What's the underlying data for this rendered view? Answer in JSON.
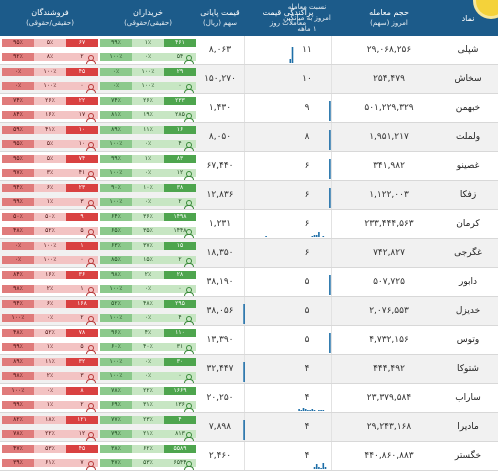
{
  "header": {
    "symbol": "نماد",
    "volume": "حجم معامله",
    "volume_sub": "امروز (سهم)",
    "ratio": "نسبت معامله",
    "ratio_sub": "امروز به میانگین",
    "ratio_sub2": "۱ ماهه",
    "spark": "پراکندگی قیمت",
    "spark_sub": "معاملات روز",
    "price": "قیمت پایانی",
    "price_sub": "سهم (ریال)",
    "buyers": "خریداران",
    "buyers_sub": "(حقیقی/حقوقی)",
    "sellers": "فروشندگان",
    "sellers_sub": "(حقیقی/حقوقی)"
  },
  "rows": [
    {
      "name": "شپلی",
      "volume": "۲۹,۰۶۸,۲۵۶",
      "ratio": "۱۱",
      "price": "۸,۰۶۳",
      "buy_top": [
        "۹۹٪",
        "۱٪",
        "۴۶۱"
      ],
      "buy_bot": [
        "۱۰۰٪",
        "۰٪",
        "۵۴"
      ],
      "sell_top": [
        "۹۵٪",
        "۵٪",
        "۶۷"
      ],
      "sell_bot": [
        "۹۲٪",
        "۸٪",
        "۲"
      ],
      "spark": [
        0,
        0,
        0,
        0,
        0,
        0,
        0,
        0,
        0,
        0,
        0,
        0,
        0,
        0,
        0,
        0,
        0,
        0,
        0,
        0,
        0,
        4,
        16,
        0,
        0,
        0,
        0,
        0,
        0,
        0,
        0,
        0,
        0,
        0,
        0,
        0,
        0,
        0,
        0,
        0
      ]
    },
    {
      "name": "سخاش",
      "volume": "۲۵۴,۴۷۹",
      "ratio": "۱۰",
      "price": "۱۵۰,۲۷۰",
      "buy_top": [
        "۰٪",
        "۱۰۰٪",
        "۲۹"
      ],
      "buy_bot": [
        "۰٪",
        "۱۰۰٪",
        "۰"
      ],
      "sell_top": [
        "۰٪",
        "۱۰۰٪",
        "۴۵"
      ],
      "sell_bot": [
        "۰٪",
        "۱۰۰٪",
        "۰"
      ],
      "spark": [
        0,
        0,
        0,
        0,
        0,
        0,
        0,
        0,
        0,
        0,
        0,
        0,
        0,
        0,
        0,
        0,
        0,
        0,
        0,
        0,
        0,
        0,
        0,
        0,
        0,
        0,
        0,
        0,
        0,
        0,
        0,
        0,
        0,
        0,
        0,
        0,
        0,
        0,
        0,
        0
      ]
    },
    {
      "name": "خبهمن",
      "volume": "۵۰۱,۲۲۹,۳۲۹",
      "ratio": "۹",
      "price": "۱,۴۳۰",
      "buy_top": [
        "۷۴٪",
        "۲۶٪",
        "۲۳۳"
      ],
      "buy_bot": [
        "۸۱٪",
        "۱۹٪",
        "۲۸۵"
      ],
      "sell_top": [
        "۷۴٪",
        "۲۶٪",
        "۲۲"
      ],
      "sell_bot": [
        "۸۴٪",
        "۱۶٪",
        "۱۷"
      ],
      "spark": [
        0,
        0,
        0,
        0,
        0,
        0,
        0,
        0,
        0,
        0,
        0,
        0,
        0,
        0,
        0,
        0,
        0,
        0,
        0,
        0,
        0,
        0,
        0,
        0,
        0,
        0,
        0,
        0,
        0,
        0,
        0,
        0,
        0,
        0,
        0,
        0,
        0,
        0,
        0,
        20
      ]
    },
    {
      "name": "ولملت",
      "volume": "۱,۹۵۱,۲۱۷",
      "ratio": "۸",
      "price": "۸,۰۵۰",
      "buy_top": [
        "۸۹٪",
        "۱۱٪",
        "۱۶"
      ],
      "buy_bot": [
        "۱۰۰٪",
        "۰٪",
        "۴"
      ],
      "sell_top": [
        "۵۹٪",
        "۴۱٪",
        "۱۰"
      ],
      "sell_bot": [
        "۹۵٪",
        "۵٪",
        "۱۰"
      ],
      "spark": [
        0,
        0,
        0,
        0,
        0,
        0,
        0,
        0,
        0,
        0,
        0,
        0,
        0,
        0,
        0,
        0,
        0,
        0,
        0,
        0,
        0,
        0,
        0,
        0,
        0,
        0,
        0,
        0,
        0,
        0,
        0,
        0,
        0,
        0,
        0,
        0,
        0,
        0,
        0,
        20
      ]
    },
    {
      "name": "غصینو",
      "volume": "۳۴۱,۹۸۲",
      "ratio": "۶",
      "price": "۶۷,۴۴۰",
      "buy_top": [
        "۹۹٪",
        "۱٪",
        "۸۳"
      ],
      "buy_bot": [
        "۱۰۰٪",
        "۰٪",
        "۱۲"
      ],
      "sell_top": [
        "۹۵٪",
        "۵٪",
        "۷۴"
      ],
      "sell_bot": [
        "۹۷٪",
        "۳٪",
        "۴۱"
      ],
      "spark": [
        0,
        0,
        0,
        0,
        0,
        0,
        0,
        0,
        0,
        0,
        0,
        0,
        0,
        0,
        0,
        0,
        0,
        0,
        0,
        0,
        0,
        0,
        0,
        0,
        0,
        0,
        0,
        0,
        0,
        0,
        0,
        0,
        0,
        0,
        0,
        0,
        0,
        0,
        0,
        20
      ]
    },
    {
      "name": "زفکا",
      "volume": "۱,۱۲۲,۰۰۳",
      "ratio": "۶",
      "price": "۱۲,۸۳۶",
      "buy_top": [
        "۹۰٪",
        "۱۰٪",
        "۳۸"
      ],
      "buy_bot": [
        "۱۰۰٪",
        "۰٪",
        "۲"
      ],
      "sell_top": [
        "۹۴٪",
        "۶٪",
        "۲۳"
      ],
      "sell_bot": [
        "۹۹٪",
        "۱٪",
        "۳"
      ],
      "spark": [
        0,
        0,
        0,
        0,
        0,
        0,
        0,
        0,
        0,
        0,
        0,
        0,
        0,
        0,
        0,
        0,
        0,
        0,
        0,
        0,
        0,
        0,
        0,
        0,
        0,
        0,
        0,
        0,
        0,
        0,
        0,
        0,
        0,
        0,
        0,
        0,
        0,
        0,
        0,
        20
      ]
    },
    {
      "name": "کرمان",
      "volume": "۲۳۳,۴۴۴,۵۶۳",
      "ratio": "۶",
      "price": "۱,۲۳۱",
      "buy_top": [
        "۶۴٪",
        "۳۶٪",
        "۱۴۹۸"
      ],
      "buy_bot": [
        "۶۵٪",
        "۳۵٪",
        "۱۴۴۸"
      ],
      "sell_top": [
        "۵۰٪",
        "۵۰٪",
        "۹"
      ],
      "sell_bot": [
        "۴۸٪",
        "۵۲٪",
        "۵"
      ],
      "spark": [
        0,
        0,
        0,
        0,
        0,
        0,
        0,
        0,
        0,
        0,
        1,
        0,
        0,
        0,
        0,
        0,
        0,
        0,
        0,
        0,
        0,
        0,
        0,
        0,
        0,
        0,
        0,
        0,
        0,
        0,
        0,
        1,
        2,
        2,
        5,
        0,
        1,
        0,
        0,
        0
      ]
    },
    {
      "name": "غگرجی",
      "volume": "۷۴۲,۸۲۷",
      "ratio": "۶",
      "price": "۱۸,۳۵۰",
      "buy_top": [
        "۶۳٪",
        "۳۷٪",
        "۱۵"
      ],
      "buy_bot": [
        "۸۵٪",
        "۱۵٪",
        "۲"
      ],
      "sell_top": [
        "۰٪",
        "۱۰۰٪",
        "۱"
      ],
      "sell_bot": [
        "۰٪",
        "۱۰۰٪",
        "۰"
      ],
      "spark": [
        0,
        0,
        0,
        0,
        0,
        0,
        0,
        0,
        0,
        0,
        0,
        0,
        0,
        0,
        0,
        0,
        0,
        0,
        0,
        0,
        0,
        0,
        0,
        0,
        0,
        0,
        0,
        0,
        0,
        0,
        0,
        0,
        0,
        0,
        0,
        0,
        0,
        0,
        0,
        0
      ]
    },
    {
      "name": "دابور",
      "volume": "۵۰۷,۷۲۵",
      "ratio": "۵",
      "price": "۳۸,۱۹۰",
      "buy_top": [
        "۹۸٪",
        "۲٪",
        "۲۸"
      ],
      "buy_bot": [
        "۱۰۰٪",
        "۰٪",
        "۰"
      ],
      "sell_top": [
        "۸۴٪",
        "۱۶٪",
        "۳۶"
      ],
      "sell_bot": [
        "۹۸٪",
        "۲٪",
        "۱"
      ],
      "spark": [
        0,
        0,
        0,
        0,
        0,
        0,
        0,
        0,
        0,
        0,
        0,
        0,
        0,
        0,
        0,
        0,
        0,
        0,
        0,
        0,
        0,
        0,
        0,
        0,
        0,
        0,
        0,
        0,
        0,
        0,
        0,
        0,
        0,
        0,
        0,
        0,
        0,
        0,
        0,
        20
      ]
    },
    {
      "name": "خدیزل",
      "volume": "۲,۰۷۶,۵۵۳",
      "ratio": "۵",
      "price": "۳۸,۰۵۶",
      "buy_top": [
        "۵۲٪",
        "۴۸٪",
        "۲۹۵"
      ],
      "buy_bot": [
        "۱۰۰٪",
        "۰٪",
        "۴"
      ],
      "sell_top": [
        "۹۴٪",
        "۶٪",
        "۱۶۸"
      ],
      "sell_bot": [
        "۱۰۰٪",
        "۰٪",
        "۲"
      ],
      "spark": [
        20,
        0,
        0,
        0,
        0,
        0,
        0,
        0,
        0,
        0,
        0,
        0,
        0,
        0,
        0,
        0,
        0,
        0,
        0,
        0,
        0,
        0,
        0,
        0,
        0,
        0,
        0,
        0,
        0,
        0,
        0,
        0,
        0,
        0,
        0,
        0,
        0,
        0,
        0,
        0
      ]
    },
    {
      "name": "وتوس",
      "volume": "۴,۷۳۲,۱۵۶",
      "ratio": "۵",
      "price": "۱۳,۳۹۰",
      "buy_top": [
        "۹۶٪",
        "۴٪",
        "۱۱۰"
      ],
      "buy_bot": [
        "۶۰٪",
        "۴۰٪",
        "۳۱"
      ],
      "sell_top": [
        "۴۸٪",
        "۵۲٪",
        "۷۸"
      ],
      "sell_bot": [
        "۹۹٪",
        "۱٪",
        "۵"
      ],
      "spark": [
        0,
        0,
        0,
        0,
        0,
        0,
        0,
        0,
        0,
        0,
        0,
        0,
        0,
        0,
        0,
        0,
        0,
        0,
        0,
        0,
        0,
        0,
        0,
        0,
        0,
        0,
        0,
        0,
        0,
        0,
        0,
        0,
        0,
        0,
        0,
        0,
        0,
        0,
        0,
        20
      ]
    },
    {
      "name": "شتوکا",
      "volume": "۴۴۴,۴۹۲",
      "ratio": "۴",
      "price": "۳۲,۴۴۷",
      "buy_top": [
        "۱۰۰٪",
        "۰٪",
        "۳۰"
      ],
      "buy_bot": [
        "۱۰۰٪",
        "۰٪",
        "۰"
      ],
      "sell_top": [
        "۸۹٪",
        "۱۱٪",
        "۳۲"
      ],
      "sell_bot": [
        "۹۸٪",
        "۲٪",
        "۳"
      ],
      "spark": [
        20,
        0,
        0,
        0,
        0,
        0,
        0,
        0,
        0,
        0,
        0,
        0,
        0,
        0,
        0,
        0,
        0,
        0,
        0,
        0,
        0,
        0,
        0,
        0,
        0,
        0,
        0,
        0,
        0,
        0,
        0,
        0,
        0,
        0,
        0,
        0,
        0,
        0,
        0,
        0
      ]
    },
    {
      "name": "ساراب",
      "volume": "۲۳,۳۷۹,۵۸۴",
      "ratio": "۴",
      "price": "۲۰,۲۵۰",
      "buy_top": [
        "۷۸٪",
        "۲۲٪",
        "۱۶۶۹"
      ],
      "buy_bot": [
        "۶۹٪",
        "۳۱٪",
        "۱۳۶"
      ],
      "sell_top": [
        "۱۰۰٪",
        "۰٪",
        "۸"
      ],
      "sell_bot": [
        "۹۹٪",
        "۱٪",
        "۲"
      ],
      "spark": [
        0,
        0,
        0,
        0,
        0,
        0,
        0,
        0,
        0,
        0,
        0,
        0,
        0,
        0,
        0,
        0,
        0,
        0,
        0,
        0,
        0,
        0,
        0,
        0,
        0,
        2,
        1,
        3,
        2,
        1,
        1,
        2,
        1,
        0,
        1,
        1,
        1,
        0,
        0,
        0
      ]
    },
    {
      "name": "مادیرا",
      "volume": "۲۹,۲۴۳,۱۶۸",
      "ratio": "۴",
      "price": "۷,۸۹۸",
      "buy_top": [
        "۷۷٪",
        "۲۳٪",
        "۴"
      ],
      "buy_bot": [
        "۷۹٪",
        "۲۱٪",
        "۸۱۳"
      ],
      "sell_top": [
        "۸۲٪",
        "۱۸٪",
        "۱۲۱"
      ],
      "sell_bot": [
        "۷۸٪",
        "۲۲٪",
        "۱۲"
      ],
      "spark": [
        20,
        0,
        0,
        0,
        0,
        0,
        0,
        0,
        0,
        0,
        0,
        0,
        0,
        0,
        0,
        0,
        0,
        0,
        0,
        0,
        0,
        0,
        0,
        0,
        0,
        0,
        0,
        0,
        0,
        0,
        0,
        0,
        0,
        0,
        0,
        0,
        0,
        0,
        0,
        0
      ]
    },
    {
      "name": "خگستر",
      "volume": "۴۴۰,۸۶۰,۸۸۳",
      "ratio": "۴",
      "price": "۲,۴۶۰",
      "buy_top": [
        "۳۸٪",
        "۶۲٪",
        "۵۵۸۹"
      ],
      "buy_bot": [
        "۴۷٪",
        "۵۳٪",
        "۶۵۴۴"
      ],
      "sell_top": [
        "۴۷٪",
        "۵۳٪",
        "۴۵"
      ],
      "sell_bot": [
        "۳۹٪",
        "۶۱٪",
        "۷"
      ],
      "spark": [
        0,
        0,
        0,
        0,
        0,
        0,
        0,
        0,
        0,
        0,
        0,
        0,
        0,
        0,
        0,
        0,
        0,
        0,
        0,
        0,
        0,
        0,
        0,
        0,
        0,
        0,
        0,
        0,
        0,
        0,
        0,
        0,
        2,
        5,
        2,
        1,
        6,
        2,
        0,
        0
      ]
    }
  ],
  "colors": {
    "header_bg": "#1c5b8a",
    "buy_green": "#4ea54e",
    "sell_red": "#d64545",
    "spark_bar": "#1f6fa8",
    "badge_yellow": "#f4d23a"
  }
}
